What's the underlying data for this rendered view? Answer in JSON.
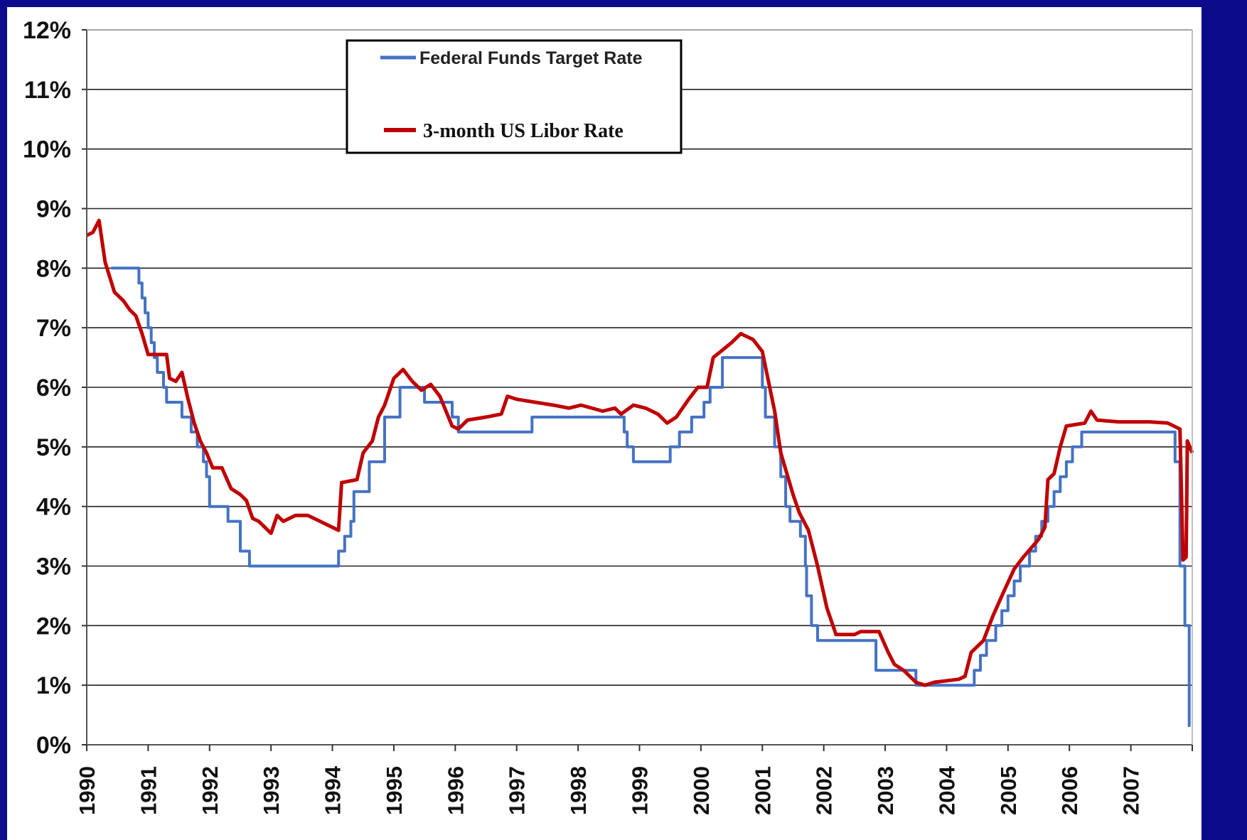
{
  "chart_data": {
    "type": "line",
    "title": "",
    "xlabel": "",
    "ylabel": "",
    "xlim": [
      1990,
      2008
    ],
    "ylim": [
      0,
      12
    ],
    "y_ticks": [
      "0%",
      "1%",
      "2%",
      "3%",
      "4%",
      "5%",
      "6%",
      "7%",
      "8%",
      "9%",
      "10%",
      "11%",
      "12%"
    ],
    "x_ticks": [
      "1990",
      "1991",
      "1992",
      "1993",
      "1994",
      "1995",
      "1996",
      "1997",
      "1998",
      "1999",
      "2000",
      "2001",
      "2002",
      "2003",
      "2004",
      "2005",
      "2006",
      "2007"
    ],
    "grid": true,
    "legend": "top-center",
    "series": [
      {
        "name": "Federal Funds Target Rate",
        "color": "#4472c4",
        "step": true,
        "points": [
          [
            1990.4,
            8.0
          ],
          [
            1990.85,
            7.75
          ],
          [
            1990.9,
            7.5
          ],
          [
            1990.95,
            7.25
          ],
          [
            1991.0,
            7.0
          ],
          [
            1991.05,
            6.75
          ],
          [
            1991.1,
            6.5
          ],
          [
            1991.15,
            6.25
          ],
          [
            1991.25,
            6.0
          ],
          [
            1991.3,
            5.75
          ],
          [
            1991.55,
            5.5
          ],
          [
            1991.7,
            5.25
          ],
          [
            1991.8,
            5.0
          ],
          [
            1991.9,
            4.75
          ],
          [
            1991.95,
            4.5
          ],
          [
            1992.0,
            4.0
          ],
          [
            1992.3,
            3.75
          ],
          [
            1992.5,
            3.25
          ],
          [
            1992.65,
            3.0
          ],
          [
            1994.1,
            3.25
          ],
          [
            1994.2,
            3.5
          ],
          [
            1994.3,
            3.75
          ],
          [
            1994.35,
            4.25
          ],
          [
            1994.6,
            4.75
          ],
          [
            1994.85,
            5.5
          ],
          [
            1995.1,
            6.0
          ],
          [
            1995.5,
            5.75
          ],
          [
            1995.95,
            5.5
          ],
          [
            1996.05,
            5.25
          ],
          [
            1997.25,
            5.5
          ],
          [
            1998.75,
            5.25
          ],
          [
            1998.8,
            5.0
          ],
          [
            1998.9,
            4.75
          ],
          [
            1999.5,
            5.0
          ],
          [
            1999.65,
            5.25
          ],
          [
            1999.85,
            5.5
          ],
          [
            2000.05,
            5.75
          ],
          [
            2000.15,
            6.0
          ],
          [
            2000.35,
            6.5
          ],
          [
            2001.0,
            6.0
          ],
          [
            2001.05,
            5.5
          ],
          [
            2001.2,
            5.0
          ],
          [
            2001.3,
            4.5
          ],
          [
            2001.38,
            4.0
          ],
          [
            2001.45,
            3.75
          ],
          [
            2001.62,
            3.5
          ],
          [
            2001.7,
            3.0
          ],
          [
            2001.72,
            2.5
          ],
          [
            2001.8,
            2.0
          ],
          [
            2001.9,
            1.75
          ],
          [
            2002.85,
            1.25
          ],
          [
            2003.5,
            1.0
          ],
          [
            2004.45,
            1.25
          ],
          [
            2004.55,
            1.5
          ],
          [
            2004.65,
            1.75
          ],
          [
            2004.8,
            2.0
          ],
          [
            2004.9,
            2.25
          ],
          [
            2005.0,
            2.5
          ],
          [
            2005.1,
            2.75
          ],
          [
            2005.2,
            3.0
          ],
          [
            2005.35,
            3.25
          ],
          [
            2005.45,
            3.5
          ],
          [
            2005.55,
            3.75
          ],
          [
            2005.65,
            4.0
          ],
          [
            2005.75,
            4.25
          ],
          [
            2005.85,
            4.5
          ],
          [
            2005.95,
            4.75
          ],
          [
            2006.05,
            5.0
          ],
          [
            2006.2,
            5.25
          ],
          [
            2007.7,
            5.25
          ],
          [
            2007.72,
            4.75
          ],
          [
            2007.8,
            3.0
          ],
          [
            2007.88,
            2.0
          ],
          [
            2007.95,
            0.3
          ]
        ]
      },
      {
        "name": "3-month US Libor Rate",
        "color": "#c00000",
        "step": false,
        "points": [
          [
            1990.0,
            8.55
          ],
          [
            1990.1,
            8.6
          ],
          [
            1990.2,
            8.8
          ],
          [
            1990.3,
            8.1
          ],
          [
            1990.45,
            7.6
          ],
          [
            1990.6,
            7.45
          ],
          [
            1990.7,
            7.3
          ],
          [
            1990.8,
            7.2
          ],
          [
            1990.9,
            6.9
          ],
          [
            1991.0,
            6.55
          ],
          [
            1991.3,
            6.55
          ],
          [
            1991.35,
            6.15
          ],
          [
            1991.45,
            6.1
          ],
          [
            1991.55,
            6.25
          ],
          [
            1991.65,
            5.8
          ],
          [
            1991.75,
            5.4
          ],
          [
            1991.85,
            5.1
          ],
          [
            1991.95,
            4.9
          ],
          [
            1992.05,
            4.65
          ],
          [
            1992.2,
            4.65
          ],
          [
            1992.35,
            4.3
          ],
          [
            1992.5,
            4.2
          ],
          [
            1992.6,
            4.1
          ],
          [
            1992.7,
            3.8
          ],
          [
            1992.8,
            3.75
          ],
          [
            1993.0,
            3.55
          ],
          [
            1993.1,
            3.85
          ],
          [
            1993.2,
            3.75
          ],
          [
            1993.4,
            3.85
          ],
          [
            1993.6,
            3.85
          ],
          [
            1993.8,
            3.75
          ],
          [
            1994.1,
            3.6
          ],
          [
            1994.15,
            4.4
          ],
          [
            1994.4,
            4.45
          ],
          [
            1994.5,
            4.9
          ],
          [
            1994.65,
            5.1
          ],
          [
            1994.75,
            5.5
          ],
          [
            1994.85,
            5.7
          ],
          [
            1995.0,
            6.15
          ],
          [
            1995.15,
            6.3
          ],
          [
            1995.3,
            6.1
          ],
          [
            1995.45,
            5.95
          ],
          [
            1995.6,
            6.05
          ],
          [
            1995.75,
            5.85
          ],
          [
            1995.95,
            5.35
          ],
          [
            1996.05,
            5.3
          ],
          [
            1996.2,
            5.45
          ],
          [
            1996.5,
            5.5
          ],
          [
            1996.75,
            5.55
          ],
          [
            1996.85,
            5.85
          ],
          [
            1997.0,
            5.8
          ],
          [
            1997.3,
            5.75
          ],
          [
            1997.6,
            5.7
          ],
          [
            1997.85,
            5.65
          ],
          [
            1998.05,
            5.7
          ],
          [
            1998.4,
            5.6
          ],
          [
            1998.6,
            5.65
          ],
          [
            1998.7,
            5.55
          ],
          [
            1998.9,
            5.7
          ],
          [
            1999.1,
            5.65
          ],
          [
            1999.3,
            5.55
          ],
          [
            1999.45,
            5.4
          ],
          [
            1999.6,
            5.5
          ],
          [
            1999.8,
            5.8
          ],
          [
            1999.95,
            6.0
          ],
          [
            2000.1,
            6.0
          ],
          [
            2000.2,
            6.5
          ],
          [
            2000.5,
            6.75
          ],
          [
            2000.65,
            6.9
          ],
          [
            2000.85,
            6.8
          ],
          [
            2001.0,
            6.6
          ],
          [
            2001.1,
            6.1
          ],
          [
            2001.2,
            5.6
          ],
          [
            2001.3,
            4.9
          ],
          [
            2001.5,
            4.2
          ],
          [
            2001.6,
            3.9
          ],
          [
            2001.75,
            3.6
          ],
          [
            2001.9,
            3.0
          ],
          [
            2002.05,
            2.3
          ],
          [
            2002.2,
            1.85
          ],
          [
            2002.5,
            1.85
          ],
          [
            2002.6,
            1.9
          ],
          [
            2002.9,
            1.9
          ],
          [
            2003.05,
            1.55
          ],
          [
            2003.15,
            1.35
          ],
          [
            2003.3,
            1.25
          ],
          [
            2003.5,
            1.05
          ],
          [
            2003.65,
            1.0
          ],
          [
            2003.8,
            1.05
          ],
          [
            2004.2,
            1.1
          ],
          [
            2004.3,
            1.15
          ],
          [
            2004.4,
            1.55
          ],
          [
            2004.6,
            1.75
          ],
          [
            2004.75,
            2.15
          ],
          [
            2004.9,
            2.5
          ],
          [
            2005.1,
            2.95
          ],
          [
            2005.25,
            3.15
          ],
          [
            2005.5,
            3.45
          ],
          [
            2005.6,
            3.65
          ],
          [
            2005.65,
            4.45
          ],
          [
            2005.75,
            4.55
          ],
          [
            2005.85,
            5.0
          ],
          [
            2005.95,
            5.35
          ],
          [
            2006.25,
            5.4
          ],
          [
            2006.35,
            5.6
          ],
          [
            2006.45,
            5.45
          ],
          [
            2006.8,
            5.42
          ],
          [
            2007.3,
            5.42
          ],
          [
            2007.6,
            5.4
          ],
          [
            2007.8,
            5.3
          ],
          [
            2007.85,
            3.1
          ],
          [
            2007.9,
            3.15
          ],
          [
            2007.92,
            5.1
          ],
          [
            2008.0,
            4.9
          ]
        ]
      }
    ]
  }
}
